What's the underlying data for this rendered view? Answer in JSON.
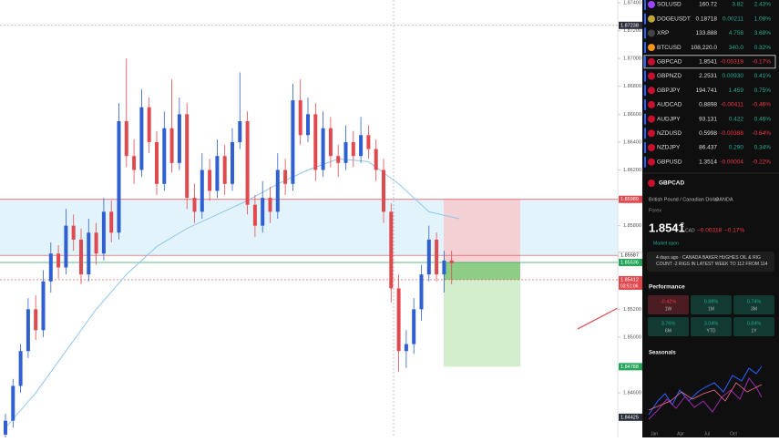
{
  "chart": {
    "type": "candlestick",
    "ylim": [
      1.8428,
      1.8742
    ],
    "yticks": [
      {
        "value": 1.874,
        "label": "1.87400"
      },
      {
        "value": 1.872,
        "label": "1.87200"
      },
      {
        "value": 1.87,
        "label": "1.87000"
      },
      {
        "value": 1.868,
        "label": "1.86800"
      },
      {
        "value": 1.866,
        "label": "1.86600"
      },
      {
        "value": 1.864,
        "label": "1.86400"
      },
      {
        "value": 1.862,
        "label": "1.86200"
      },
      {
        "value": 1.858,
        "label": "1.85800"
      },
      {
        "value": 1.852,
        "label": "1.85200"
      },
      {
        "value": 1.85,
        "label": "1.85000"
      },
      {
        "value": 1.846,
        "label": "1.84600"
      }
    ],
    "up_color": "#2f5fd0",
    "down_color": "#e04a4f",
    "ma_color": "#8ec7ee",
    "candles": [
      [
        1.843,
        1.8445,
        1.8425,
        1.844
      ],
      [
        1.844,
        1.847,
        1.8435,
        1.8465
      ],
      [
        1.8465,
        1.8495,
        1.846,
        1.849
      ],
      [
        1.849,
        1.8528,
        1.8485,
        1.852
      ],
      [
        1.852,
        1.853,
        1.8498,
        1.8505
      ],
      [
        1.8505,
        1.8548,
        1.85,
        1.854
      ],
      [
        1.854,
        1.8568,
        1.8532,
        1.856
      ],
      [
        1.856,
        1.8566,
        1.8542,
        1.855
      ],
      [
        1.855,
        1.8592,
        1.8545,
        1.858
      ],
      [
        1.858,
        1.8588,
        1.8562,
        1.857
      ],
      [
        1.857,
        1.8578,
        1.8538,
        1.8545
      ],
      [
        1.8545,
        1.8585,
        1.854,
        1.8575
      ],
      [
        1.8575,
        1.8582,
        1.8552,
        1.856
      ],
      [
        1.856,
        1.86,
        1.8555,
        1.859
      ],
      [
        1.859,
        1.8598,
        1.8568,
        1.8575
      ],
      [
        1.8575,
        1.8668,
        1.857,
        1.8655
      ],
      [
        1.8655,
        1.87,
        1.8622,
        1.863
      ],
      [
        1.863,
        1.8642,
        1.861,
        1.862
      ],
      [
        1.862,
        1.8678,
        1.8615,
        1.8665
      ],
      [
        1.8665,
        1.8672,
        1.8632,
        1.864
      ],
      [
        1.864,
        1.8648,
        1.8602,
        1.861
      ],
      [
        1.861,
        1.8662,
        1.8605,
        1.865
      ],
      [
        1.865,
        1.8685,
        1.8618,
        1.8625
      ],
      [
        1.8625,
        1.8672,
        1.862,
        1.866
      ],
      [
        1.866,
        1.8668,
        1.8592,
        1.86
      ],
      [
        1.86,
        1.861,
        1.8582,
        1.859
      ],
      [
        1.859,
        1.8632,
        1.8585,
        1.862
      ],
      [
        1.862,
        1.8628,
        1.8598,
        1.8605
      ],
      [
        1.8605,
        1.8642,
        1.86,
        1.863
      ],
      [
        1.863,
        1.8638,
        1.8602,
        1.861
      ],
      [
        1.861,
        1.865,
        1.8605,
        1.864
      ],
      [
        1.864,
        1.869,
        1.8635,
        1.8655
      ],
      [
        1.8655,
        1.8662,
        1.8588,
        1.8595
      ],
      [
        1.8595,
        1.8602,
        1.8572,
        1.858
      ],
      [
        1.858,
        1.8612,
        1.8575,
        1.86
      ],
      [
        1.86,
        1.8608,
        1.8582,
        1.859
      ],
      [
        1.859,
        1.8632,
        1.8585,
        1.862
      ],
      [
        1.862,
        1.8628,
        1.8602,
        1.861
      ],
      [
        1.861,
        1.8682,
        1.8605,
        1.867
      ],
      [
        1.867,
        1.8685,
        1.8638,
        1.8645
      ],
      [
        1.8645,
        1.8672,
        1.864,
        1.866
      ],
      [
        1.866,
        1.8668,
        1.8612,
        1.862
      ],
      [
        1.862,
        1.8662,
        1.8615,
        1.865
      ],
      [
        1.865,
        1.8658,
        1.8622,
        1.863
      ],
      [
        1.863,
        1.8638,
        1.8615,
        1.8625
      ],
      [
        1.8625,
        1.8652,
        1.862,
        1.864
      ],
      [
        1.864,
        1.8648,
        1.8622,
        1.863
      ],
      [
        1.863,
        1.8658,
        1.8625,
        1.8645
      ],
      [
        1.8645,
        1.8652,
        1.8628,
        1.8635
      ],
      [
        1.8635,
        1.8642,
        1.8612,
        1.862
      ],
      [
        1.862,
        1.8628,
        1.8582,
        1.859
      ],
      [
        1.859,
        1.8596,
        1.8525,
        1.8535
      ],
      [
        1.8535,
        1.8545,
        1.8475,
        1.849
      ],
      [
        1.849,
        1.8505,
        1.8478,
        1.8495
      ],
      [
        1.8495,
        1.8528,
        1.8488,
        1.852
      ],
      [
        1.852,
        1.8552,
        1.8512,
        1.8545
      ],
      [
        1.8545,
        1.858,
        1.854,
        1.857
      ],
      [
        1.857,
        1.8575,
        1.854,
        1.8545
      ],
      [
        1.8545,
        1.8562,
        1.8532,
        1.8555
      ],
      [
        1.8555,
        1.8562,
        1.8538,
        1.8553
      ]
    ],
    "ma": {
      "x": [
        0,
        4,
        8,
        12,
        16,
        20,
        24,
        28,
        32,
        36,
        40,
        44,
        48,
        52,
        56,
        60
      ],
      "values": [
        1.8435,
        1.846,
        1.849,
        1.852,
        1.8545,
        1.8565,
        1.8578,
        1.8588,
        1.8598,
        1.861,
        1.862,
        1.8628,
        1.8626,
        1.861,
        1.859,
        1.8585
      ]
    },
    "levels": [
      {
        "price": 1.87238,
        "color": "#2a2e39",
        "line": false
      },
      {
        "price": 1.85989,
        "color": "#e04a4f",
        "line": true
      },
      {
        "price": 1.85587,
        "color": "#ffffff",
        "line": true
      },
      {
        "price": 1.85536,
        "color": "#26a65b",
        "line": true
      },
      {
        "price": 1.85412,
        "color": "#e04a4f",
        "line": true
      },
      {
        "price": 1.84788,
        "color": "#26a65b",
        "line": false
      },
      {
        "price": 1.84425,
        "color": "#2a2e39",
        "line": false
      }
    ],
    "countdown": "03:51:06"
  },
  "watchlist": [
    [
      "SOLUSD",
      "160.72",
      "3.82",
      "2.43%"
    ],
    [
      "DOGEUSDT",
      "0.18718",
      "0.00211",
      "1.08%"
    ],
    [
      "XRP",
      "133.888",
      "4.758",
      "3.68%"
    ],
    [
      "BTCUSD",
      "108,220.0",
      "340.0",
      "0.32%"
    ],
    [
      "GBPCAD",
      "1.8541",
      "-0.00318",
      "-0.17%"
    ],
    [
      "GBPNZD",
      "2.2531",
      "0.00930",
      "0.41%"
    ],
    [
      "GBPJPY",
      "194.741",
      "1.459",
      "0.75%"
    ],
    [
      "AUDCAD",
      "0.8898",
      "-0.00411",
      "-0.46%"
    ],
    [
      "AUDJPY",
      "93.131",
      "0.422",
      "0.46%"
    ],
    [
      "NZDUSD",
      "0.5998",
      "-0.00388",
      "-0.64%"
    ],
    [
      "NZDJPY",
      "86.437",
      "0.290",
      "0.34%"
    ],
    [
      "GBPUSD",
      "1.3514",
      "-0.00004",
      "-0.22%"
    ]
  ],
  "detail": {
    "symbol": "GBPCAD",
    "name": "British Pound / Canadian Dollar",
    "exchange": "OANDA",
    "market": "Forex",
    "price": "1.8541",
    "price_digit": "2",
    "currency": "CAD",
    "change": "−0.00318",
    "change_pct": "−0.17%",
    "status": "Market open",
    "news": "4 days ago · CANADA BAKER HUGHES OIL & RIG COUNT -2 RIGS IN LATEST WEEK TO 112 FROM 114 I...",
    "performance_title": "Performance",
    "performance": [
      [
        "-0.42%",
        "1W"
      ],
      [
        "0.88%",
        "1M"
      ],
      [
        "0.74%",
        "3M"
      ],
      [
        "3.76%",
        "6M"
      ],
      [
        "3.04%",
        "YTD"
      ],
      [
        "0.84%",
        "1Y"
      ]
    ],
    "seasonals_title": "Seasonals",
    "months": [
      "Jan",
      "Apr",
      "Jul",
      "Oct"
    ]
  }
}
